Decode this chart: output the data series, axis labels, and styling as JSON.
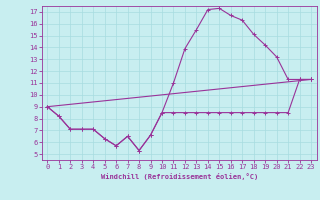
{
  "xlabel": "Windchill (Refroidissement éolien,°C)",
  "bg_color": "#c8eef0",
  "line_color": "#993399",
  "grid_color": "#a8dce0",
  "xlim": [
    -0.5,
    23.5
  ],
  "ylim": [
    4.5,
    17.5
  ],
  "xticks": [
    0,
    1,
    2,
    3,
    4,
    5,
    6,
    7,
    8,
    9,
    10,
    11,
    12,
    13,
    14,
    15,
    16,
    17,
    18,
    19,
    20,
    21,
    22,
    23
  ],
  "yticks": [
    5,
    6,
    7,
    8,
    9,
    10,
    11,
    12,
    13,
    14,
    15,
    16,
    17
  ],
  "line1_x": [
    0,
    1,
    2,
    3,
    4,
    5,
    6,
    7,
    8,
    9,
    10,
    11,
    12,
    13,
    14,
    15,
    16,
    17,
    18,
    19,
    20,
    21,
    22,
    23
  ],
  "line1_y": [
    9.0,
    8.2,
    7.1,
    7.1,
    7.1,
    6.3,
    5.7,
    6.5,
    5.3,
    6.6,
    8.5,
    8.5,
    8.5,
    8.5,
    8.5,
    8.5,
    8.5,
    8.5,
    8.5,
    8.5,
    8.5,
    8.5,
    11.3,
    11.3
  ],
  "line2_x": [
    0,
    1,
    2,
    3,
    4,
    5,
    6,
    7,
    8,
    9,
    10,
    11,
    12,
    13,
    14,
    15,
    16,
    17,
    18,
    19,
    20,
    21,
    22,
    23
  ],
  "line2_y": [
    9.0,
    8.2,
    7.1,
    7.1,
    7.1,
    6.3,
    5.7,
    6.5,
    5.3,
    6.6,
    8.5,
    11.0,
    13.9,
    15.5,
    17.2,
    17.3,
    16.7,
    16.3,
    15.1,
    14.2,
    13.2,
    11.3,
    11.3,
    11.3
  ],
  "line3_x": [
    0,
    23
  ],
  "line3_y": [
    9.0,
    11.3
  ],
  "font_size_tick": 5,
  "font_size_xlabel": 5
}
